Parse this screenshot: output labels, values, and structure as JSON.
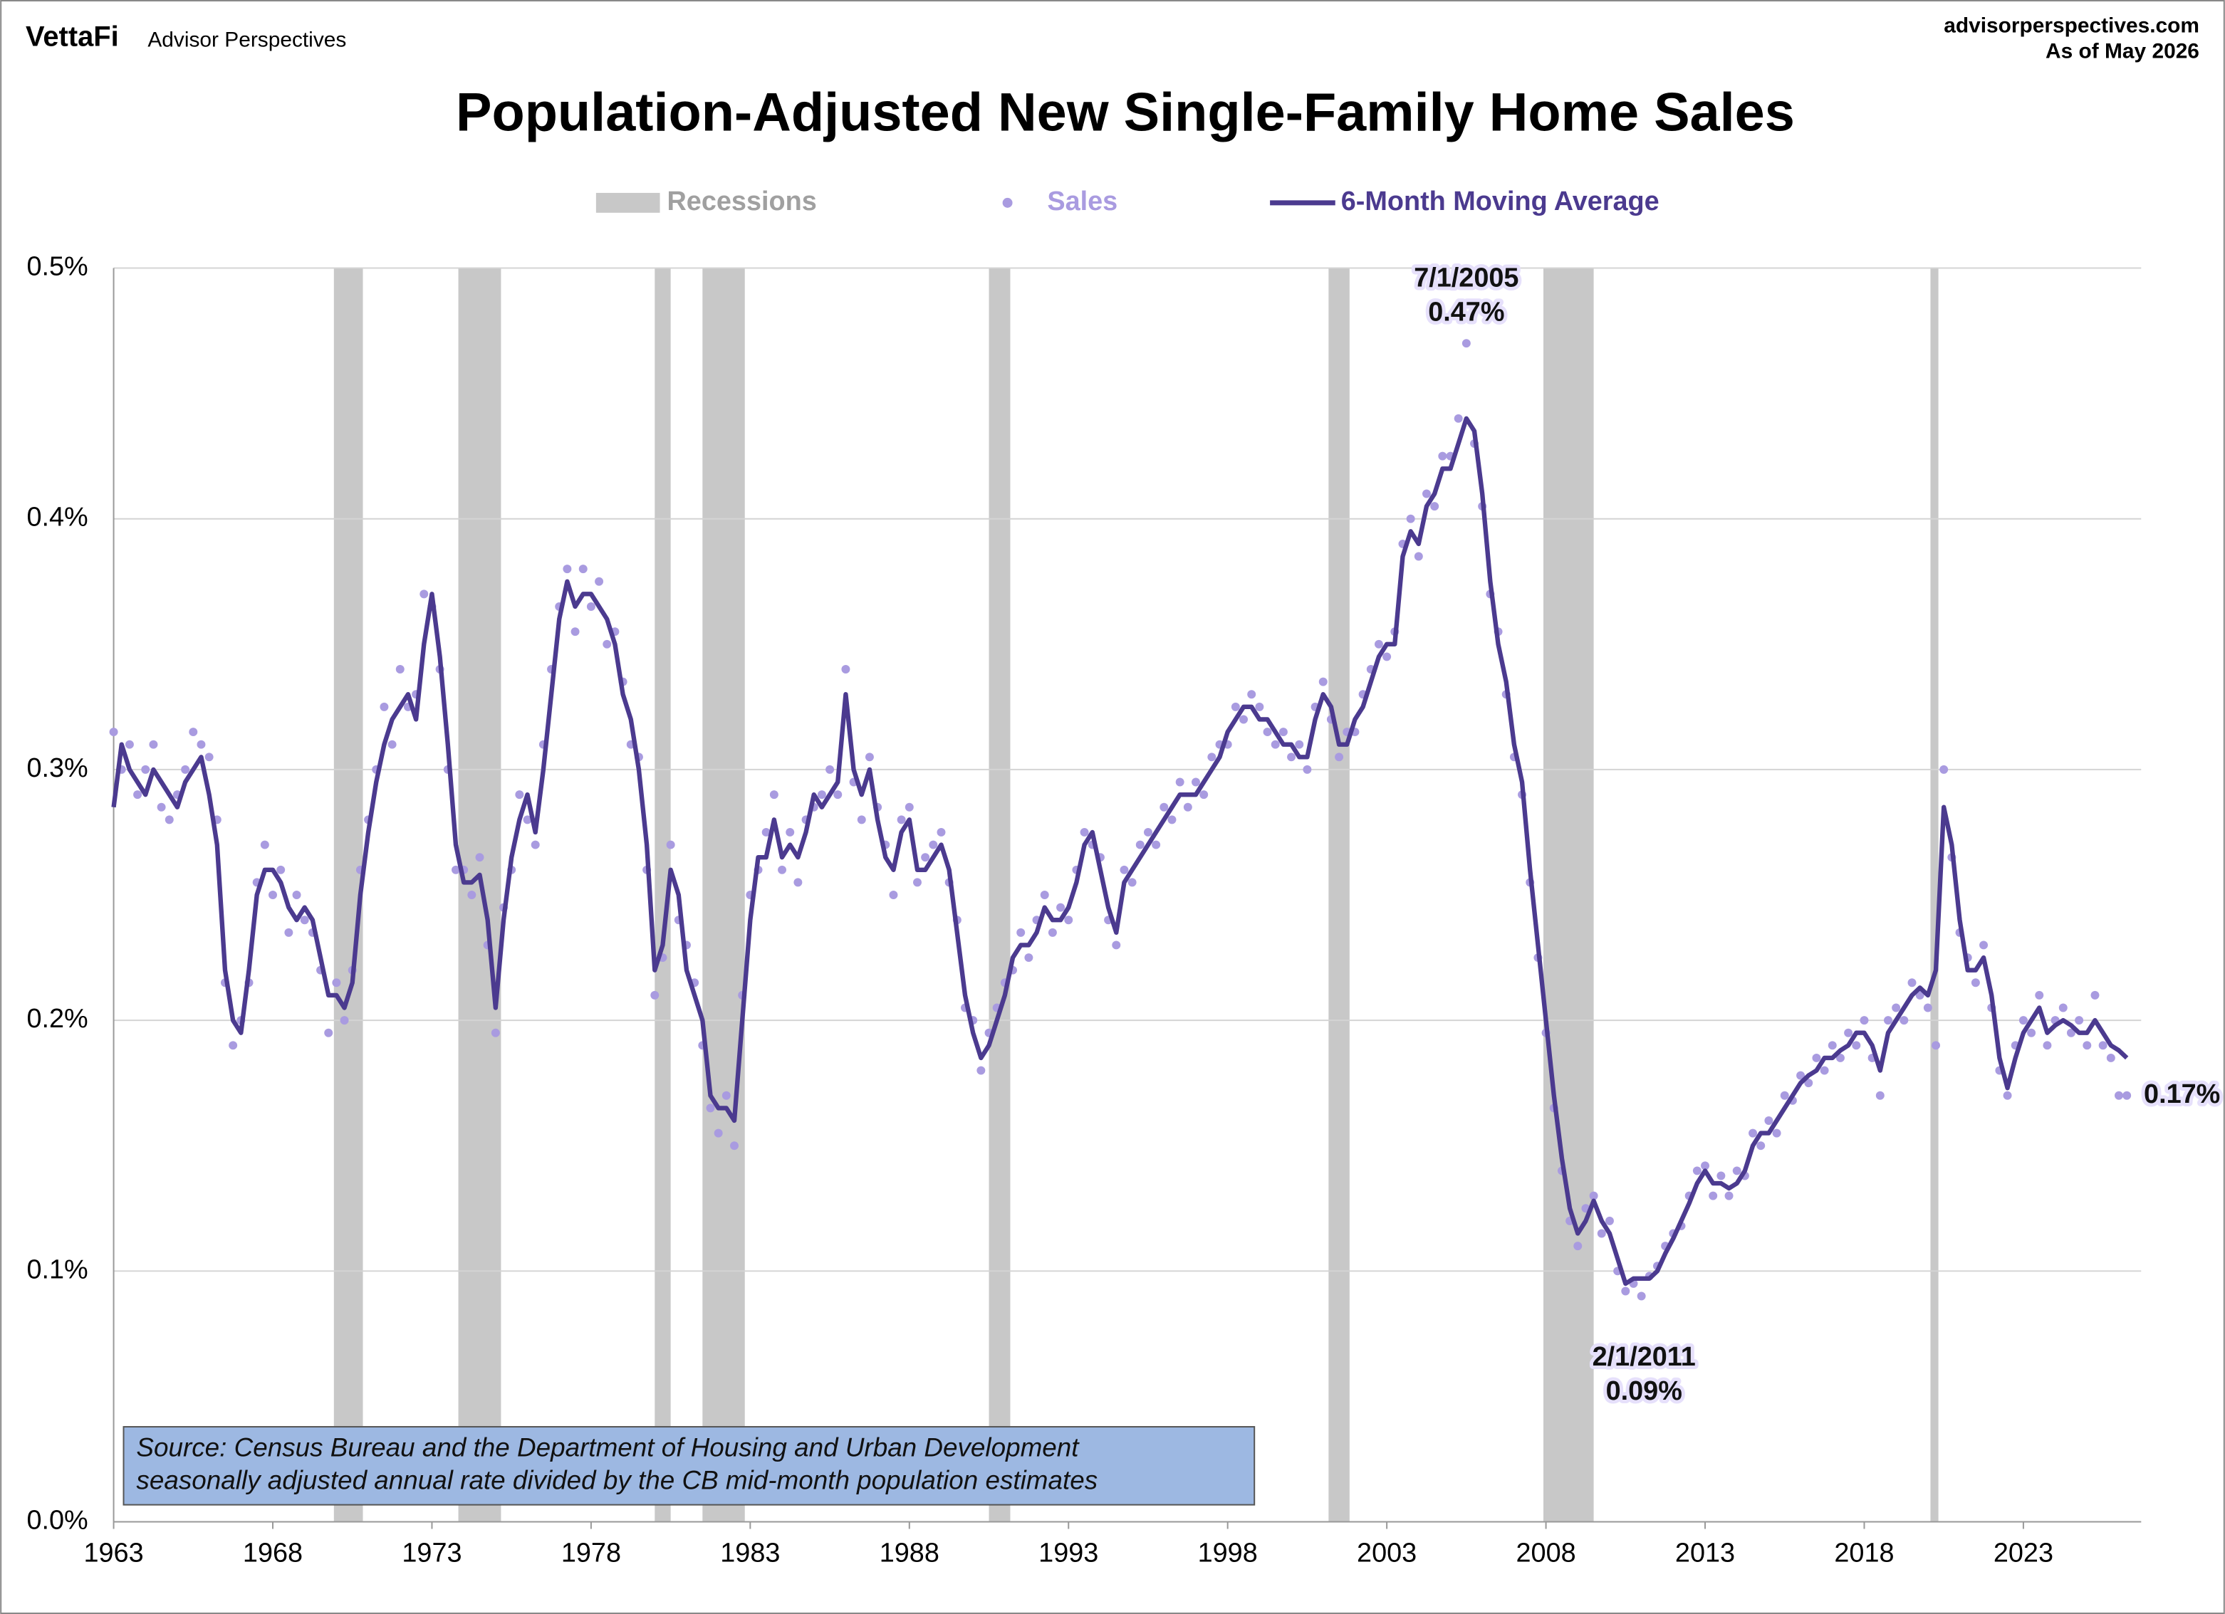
{
  "header": {
    "brand": "VettaFi",
    "publisher": "Advisor Perspectives",
    "site": "advisorperspectives.com",
    "date": "As of May 2026"
  },
  "chart_data": {
    "type": "line",
    "title": "Population-Adjusted New Single-Family Home Sales",
    "xlim": [
      1963,
      2026.7
    ],
    "xticks": [
      1963,
      1968,
      1973,
      1978,
      1983,
      1988,
      1993,
      1998,
      2003,
      2008,
      2013,
      2018,
      2023
    ],
    "ylim": [
      0,
      0.5
    ],
    "yticks": [
      {
        "value": 0,
        "label": "0.0%"
      },
      {
        "value": 0.1,
        "label": "0.1%"
      },
      {
        "value": 0.2,
        "label": "0.2%"
      },
      {
        "value": 0.3,
        "label": "0.3%"
      },
      {
        "value": 0.4,
        "label": "0.4%"
      },
      {
        "value": 0.5,
        "label": "0.5%"
      }
    ],
    "grid": true,
    "recessions": {
      "name": "Recessions",
      "color": "#c8c8c8",
      "bands": [
        [
          1969.92,
          1970.83
        ],
        [
          1973.83,
          1975.17
        ],
        [
          1980.0,
          1980.5
        ],
        [
          1981.5,
          1982.83
        ],
        [
          1990.5,
          1991.17
        ],
        [
          2001.17,
          2001.83
        ],
        [
          2007.92,
          2009.5
        ],
        [
          2020.08,
          2020.33
        ]
      ]
    },
    "x": [
      1963,
      1963.25,
      1963.5,
      1963.75,
      1964,
      1964.25,
      1964.5,
      1964.75,
      1965,
      1965.25,
      1965.5,
      1965.75,
      1966,
      1966.25,
      1966.5,
      1966.75,
      1967,
      1967.25,
      1967.5,
      1967.75,
      1968,
      1968.25,
      1968.5,
      1968.75,
      1969,
      1969.25,
      1969.5,
      1969.75,
      1970,
      1970.25,
      1970.5,
      1970.75,
      1971,
      1971.25,
      1971.5,
      1971.75,
      1972,
      1972.25,
      1972.5,
      1972.75,
      1973,
      1973.25,
      1973.5,
      1973.75,
      1974,
      1974.25,
      1974.5,
      1974.75,
      1975,
      1975.25,
      1975.5,
      1975.75,
      1976,
      1976.25,
      1976.5,
      1976.75,
      1977,
      1977.25,
      1977.5,
      1977.75,
      1978,
      1978.25,
      1978.5,
      1978.75,
      1979,
      1979.25,
      1979.5,
      1979.75,
      1980,
      1980.25,
      1980.5,
      1980.75,
      1981,
      1981.25,
      1981.5,
      1981.75,
      1982,
      1982.25,
      1982.5,
      1982.75,
      1983,
      1983.25,
      1983.5,
      1983.75,
      1984,
      1984.25,
      1984.5,
      1984.75,
      1985,
      1985.25,
      1985.5,
      1985.75,
      1986,
      1986.25,
      1986.5,
      1986.75,
      1987,
      1987.25,
      1987.5,
      1987.75,
      1988,
      1988.25,
      1988.5,
      1988.75,
      1989,
      1989.25,
      1989.5,
      1989.75,
      1990,
      1990.25,
      1990.5,
      1990.75,
      1991,
      1991.25,
      1991.5,
      1991.75,
      1992,
      1992.25,
      1992.5,
      1992.75,
      1993,
      1993.25,
      1993.5,
      1993.75,
      1994,
      1994.25,
      1994.5,
      1994.75,
      1995,
      1995.25,
      1995.5,
      1995.75,
      1996,
      1996.25,
      1996.5,
      1996.75,
      1997,
      1997.25,
      1997.5,
      1997.75,
      1998,
      1998.25,
      1998.5,
      1998.75,
      1999,
      1999.25,
      1999.5,
      1999.75,
      2000,
      2000.25,
      2000.5,
      2000.75,
      2001,
      2001.25,
      2001.5,
      2001.75,
      2002,
      2002.25,
      2002.5,
      2002.75,
      2003,
      2003.25,
      2003.5,
      2003.75,
      2004,
      2004.25,
      2004.5,
      2004.75,
      2005,
      2005.25,
      2005.5,
      2005.75,
      2006,
      2006.25,
      2006.5,
      2006.75,
      2007,
      2007.25,
      2007.5,
      2007.75,
      2008,
      2008.25,
      2008.5,
      2008.75,
      2009,
      2009.25,
      2009.5,
      2009.75,
      2010,
      2010.25,
      2010.5,
      2010.75,
      2011,
      2011.25,
      2011.5,
      2011.75,
      2012,
      2012.25,
      2012.5,
      2012.75,
      2013,
      2013.25,
      2013.5,
      2013.75,
      2014,
      2014.25,
      2014.5,
      2014.75,
      2015,
      2015.25,
      2015.5,
      2015.75,
      2016,
      2016.25,
      2016.5,
      2016.75,
      2017,
      2017.25,
      2017.5,
      2017.75,
      2018,
      2018.25,
      2018.5,
      2018.75,
      2019,
      2019.25,
      2019.5,
      2019.75,
      2020,
      2020.25,
      2020.5,
      2020.75,
      2021,
      2021.25,
      2021.5,
      2021.75,
      2022,
      2022.25,
      2022.5,
      2022.75,
      2023,
      2023.25,
      2023.5,
      2023.75,
      2024,
      2024.25,
      2024.5,
      2024.75,
      2025,
      2025.25,
      2025.5,
      2025.75,
      2026,
      2026.25
    ],
    "series": [
      {
        "name": "Sales",
        "color": "#a99be0",
        "style": "dots",
        "values": [
          0.315,
          0.3,
          0.31,
          0.29,
          0.3,
          0.31,
          0.285,
          0.28,
          0.29,
          0.3,
          0.315,
          0.31,
          0.305,
          0.28,
          0.215,
          0.19,
          0.2,
          0.215,
          0.255,
          0.27,
          0.25,
          0.26,
          0.235,
          0.25,
          0.24,
          0.235,
          0.22,
          0.195,
          0.215,
          0.2,
          0.22,
          0.26,
          0.28,
          0.3,
          0.325,
          0.31,
          0.34,
          0.325,
          0.33,
          0.37,
          0.365,
          0.34,
          0.3,
          0.26,
          0.26,
          0.25,
          0.265,
          0.23,
          0.195,
          0.245,
          0.26,
          0.29,
          0.28,
          0.27,
          0.31,
          0.34,
          0.365,
          0.38,
          0.355,
          0.38,
          0.365,
          0.375,
          0.35,
          0.355,
          0.335,
          0.31,
          0.305,
          0.26,
          0.21,
          0.225,
          0.27,
          0.24,
          0.23,
          0.215,
          0.19,
          0.165,
          0.155,
          0.17,
          0.15,
          0.21,
          0.25,
          0.26,
          0.275,
          0.29,
          0.26,
          0.275,
          0.255,
          0.28,
          0.285,
          0.29,
          0.3,
          0.29,
          0.34,
          0.295,
          0.28,
          0.305,
          0.285,
          0.27,
          0.25,
          0.28,
          0.285,
          0.255,
          0.265,
          0.27,
          0.275,
          0.255,
          0.24,
          0.205,
          0.2,
          0.18,
          0.195,
          0.205,
          0.215,
          0.22,
          0.235,
          0.225,
          0.24,
          0.25,
          0.235,
          0.245,
          0.24,
          0.26,
          0.275,
          0.27,
          0.265,
          0.24,
          0.23,
          0.26,
          0.255,
          0.27,
          0.275,
          0.27,
          0.285,
          0.28,
          0.295,
          0.285,
          0.295,
          0.29,
          0.305,
          0.31,
          0.31,
          0.325,
          0.32,
          0.33,
          0.325,
          0.315,
          0.31,
          0.315,
          0.305,
          0.31,
          0.3,
          0.325,
          0.335,
          0.32,
          0.305,
          0.315,
          0.315,
          0.33,
          0.34,
          0.35,
          0.345,
          0.355,
          0.39,
          0.4,
          0.385,
          0.41,
          0.405,
          0.425,
          0.425,
          0.44,
          0.47,
          0.43,
          0.405,
          0.37,
          0.355,
          0.33,
          0.305,
          0.29,
          0.255,
          0.225,
          0.195,
          0.165,
          0.14,
          0.12,
          0.11,
          0.125,
          0.13,
          0.115,
          0.12,
          0.1,
          0.092,
          0.095,
          0.09,
          0.098,
          0.102,
          0.11,
          0.115,
          0.118,
          0.13,
          0.14,
          0.142,
          0.13,
          0.138,
          0.13,
          0.14,
          0.138,
          0.155,
          0.15,
          0.16,
          0.155,
          0.17,
          0.168,
          0.178,
          0.175,
          0.185,
          0.18,
          0.19,
          0.185,
          0.195,
          0.19,
          0.2,
          0.185,
          0.17,
          0.2,
          0.205,
          0.2,
          0.215,
          0.21,
          0.205,
          0.19,
          0.3,
          0.265,
          0.235,
          0.225,
          0.215,
          0.23,
          0.205,
          0.18,
          0.17,
          0.19,
          0.2,
          0.195,
          0.21,
          0.19,
          0.2,
          0.205,
          0.195,
          0.2,
          0.19,
          0.21,
          0.19,
          0.185,
          0.17,
          0.17
        ]
      },
      {
        "name": "6-Month Moving Average",
        "color": "#4b3a8f",
        "style": "line",
        "values": [
          0.285,
          0.31,
          0.3,
          0.295,
          0.29,
          0.3,
          0.295,
          0.29,
          0.285,
          0.295,
          0.3,
          0.305,
          0.29,
          0.27,
          0.22,
          0.2,
          0.195,
          0.22,
          0.25,
          0.26,
          0.26,
          0.255,
          0.245,
          0.24,
          0.245,
          0.24,
          0.225,
          0.21,
          0.21,
          0.205,
          0.215,
          0.25,
          0.275,
          0.295,
          0.31,
          0.32,
          0.325,
          0.33,
          0.32,
          0.35,
          0.37,
          0.345,
          0.31,
          0.27,
          0.255,
          0.255,
          0.258,
          0.24,
          0.205,
          0.24,
          0.265,
          0.28,
          0.29,
          0.275,
          0.3,
          0.33,
          0.36,
          0.375,
          0.365,
          0.37,
          0.37,
          0.365,
          0.36,
          0.35,
          0.33,
          0.32,
          0.3,
          0.27,
          0.22,
          0.23,
          0.26,
          0.25,
          0.22,
          0.21,
          0.2,
          0.17,
          0.165,
          0.165,
          0.16,
          0.2,
          0.24,
          0.265,
          0.265,
          0.28,
          0.265,
          0.27,
          0.265,
          0.275,
          0.29,
          0.285,
          0.29,
          0.295,
          0.33,
          0.3,
          0.29,
          0.3,
          0.28,
          0.265,
          0.26,
          0.275,
          0.28,
          0.26,
          0.26,
          0.265,
          0.27,
          0.26,
          0.235,
          0.21,
          0.195,
          0.185,
          0.19,
          0.2,
          0.21,
          0.225,
          0.23,
          0.23,
          0.235,
          0.245,
          0.24,
          0.24,
          0.245,
          0.255,
          0.27,
          0.275,
          0.26,
          0.245,
          0.235,
          0.255,
          0.26,
          0.265,
          0.27,
          0.275,
          0.28,
          0.285,
          0.29,
          0.29,
          0.29,
          0.295,
          0.3,
          0.305,
          0.315,
          0.32,
          0.325,
          0.325,
          0.32,
          0.32,
          0.315,
          0.31,
          0.31,
          0.305,
          0.305,
          0.32,
          0.33,
          0.325,
          0.31,
          0.31,
          0.32,
          0.325,
          0.335,
          0.345,
          0.35,
          0.35,
          0.385,
          0.395,
          0.39,
          0.405,
          0.41,
          0.42,
          0.42,
          0.43,
          0.44,
          0.435,
          0.41,
          0.375,
          0.35,
          0.335,
          0.31,
          0.295,
          0.26,
          0.23,
          0.2,
          0.17,
          0.145,
          0.125,
          0.115,
          0.12,
          0.128,
          0.12,
          0.115,
          0.105,
          0.095,
          0.097,
          0.097,
          0.097,
          0.1,
          0.107,
          0.113,
          0.12,
          0.127,
          0.135,
          0.14,
          0.135,
          0.135,
          0.133,
          0.135,
          0.14,
          0.15,
          0.155,
          0.155,
          0.16,
          0.165,
          0.17,
          0.175,
          0.178,
          0.18,
          0.185,
          0.185,
          0.188,
          0.19,
          0.195,
          0.195,
          0.19,
          0.18,
          0.195,
          0.2,
          0.205,
          0.21,
          0.213,
          0.21,
          0.22,
          0.285,
          0.27,
          0.24,
          0.22,
          0.22,
          0.225,
          0.21,
          0.185,
          0.173,
          0.185,
          0.195,
          0.2,
          0.205,
          0.195,
          0.198,
          0.2,
          0.198,
          0.195,
          0.195,
          0.2,
          0.195,
          0.19,
          0.188,
          0.185
        ]
      }
    ],
    "annotations": [
      {
        "x": 2005.5,
        "y": 0.47,
        "lines": [
          "7/1/2005",
          "0.47%"
        ],
        "position": "above"
      },
      {
        "x": 2011.08,
        "y": 0.09,
        "lines": [
          "2/1/2011",
          "0.09%"
        ],
        "position": "below"
      },
      {
        "x": 2026.25,
        "y": 0.17,
        "lines": [
          "0.17%"
        ],
        "position": "right"
      }
    ],
    "source": [
      "Source: Census Bureau and the Department of Housing and Urban Development",
      "seasonally adjusted annual rate divided by the CB mid-month population estimates"
    ]
  }
}
